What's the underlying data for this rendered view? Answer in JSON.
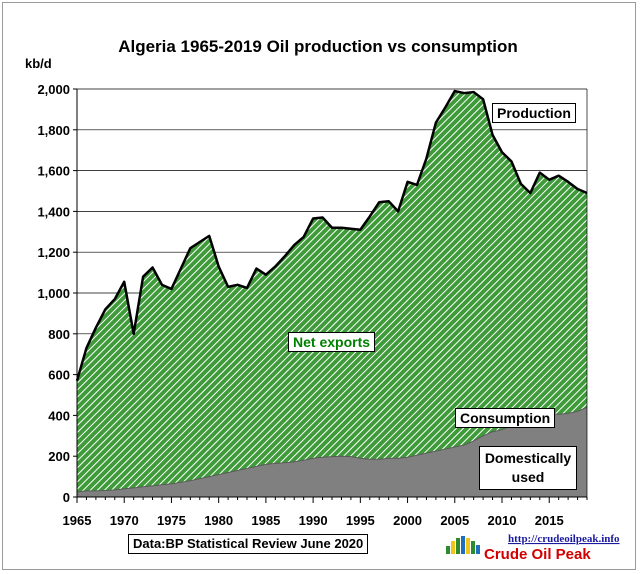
{
  "chart_data": {
    "type": "area",
    "title": "Algeria 1965-2019 Oil production  vs consumption",
    "ylabel": "kb/d",
    "xlabel": "",
    "ylim": [
      0,
      2000
    ],
    "xlim": [
      1965,
      2019
    ],
    "y_ticks": [
      "0",
      "200",
      "400",
      "600",
      "800",
      "1,000",
      "1,200",
      "1,400",
      "1,600",
      "1,800",
      "2,000"
    ],
    "x_ticks": [
      "1965",
      "1970",
      "1975",
      "1980",
      "1985",
      "1990",
      "1995",
      "2000",
      "2005",
      "2010",
      "2015"
    ],
    "grid": true,
    "x": [
      1965,
      1966,
      1967,
      1968,
      1969,
      1970,
      1971,
      1972,
      1973,
      1974,
      1975,
      1976,
      1977,
      1978,
      1979,
      1980,
      1981,
      1982,
      1983,
      1984,
      1985,
      1986,
      1987,
      1988,
      1989,
      1990,
      1991,
      1992,
      1993,
      1994,
      1995,
      1996,
      1997,
      1998,
      1999,
      2000,
      2001,
      2002,
      2003,
      2004,
      2005,
      2006,
      2007,
      2008,
      2009,
      2010,
      2011,
      2012,
      2013,
      2014,
      2015,
      2016,
      2017,
      2018,
      2019
    ],
    "series": [
      {
        "name": "Production",
        "values": [
          570,
          730,
          830,
          920,
          970,
          1055,
          800,
          1080,
          1125,
          1040,
          1020,
          1120,
          1220,
          1250,
          1280,
          1130,
          1030,
          1040,
          1025,
          1120,
          1090,
          1130,
          1180,
          1235,
          1275,
          1365,
          1370,
          1320,
          1320,
          1315,
          1310,
          1375,
          1445,
          1450,
          1400,
          1545,
          1530,
          1660,
          1835,
          1910,
          1990,
          1980,
          1985,
          1950,
          1775,
          1690,
          1645,
          1535,
          1490,
          1590,
          1555,
          1575,
          1545,
          1510,
          1490
        ]
      },
      {
        "name": "Consumption",
        "values": [
          25,
          30,
          30,
          32,
          35,
          40,
          45,
          50,
          55,
          60,
          65,
          72,
          80,
          90,
          100,
          110,
          120,
          130,
          140,
          150,
          160,
          165,
          168,
          172,
          180,
          190,
          195,
          198,
          200,
          198,
          190,
          185,
          185,
          190,
          190,
          195,
          205,
          215,
          225,
          235,
          245,
          255,
          275,
          300,
          320,
          330,
          350,
          365,
          380,
          400,
          410,
          405,
          410,
          420,
          440
        ]
      }
    ],
    "annotations": [
      "Production",
      "Consumption",
      "Net exports",
      "Domestically used"
    ],
    "source": "Data:BP Statistical Review June 2020"
  },
  "brand": {
    "url": "http://crudeoilpeak.info",
    "name": "Crude Oil Peak"
  },
  "colors": {
    "net_exports_fill": "#3f9b3a",
    "net_exports_stripe": "#ffffff",
    "consumption_fill": "#808080",
    "line": "#000000",
    "net_exports_text": "#008000",
    "brand_red": "#d20000",
    "brand_blue": "#1a1aa0"
  }
}
